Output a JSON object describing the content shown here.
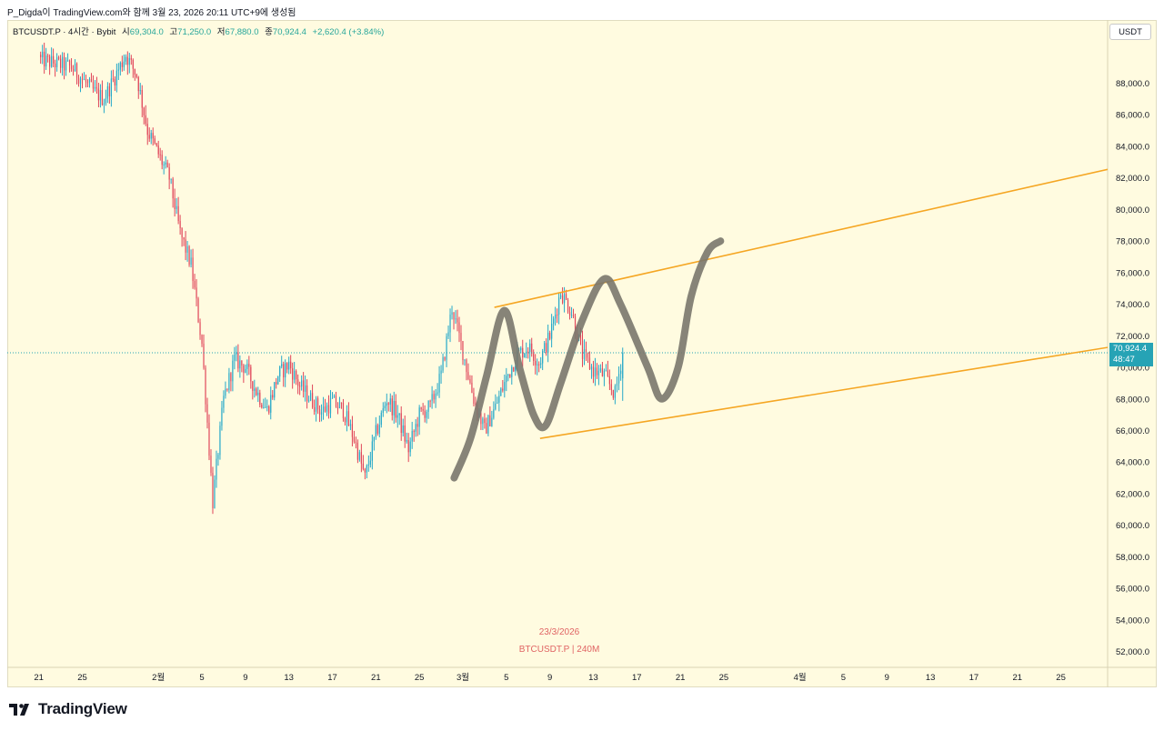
{
  "header": {
    "caption": "P_Digda이 TradingView.com와 함께 3월 23, 2026 20:11 UTC+9에 생성됨"
  },
  "legend": {
    "symbol": "BTCUSDT.P · 4시간 · Bybit",
    "open_label": "시",
    "open_value": "69,304.0",
    "high_label": "고",
    "high_value": "71,250.0",
    "low_label": "저",
    "low_value": "67,880.0",
    "close_label": "종",
    "close_value": "70,924.4",
    "change": "+2,620.4 (+3.84%)"
  },
  "price_scale": {
    "currency": "USDT",
    "last_price": "70,924.4",
    "countdown": "48:47"
  },
  "watermark": {
    "date": "23/3/2026",
    "symbol_interval": "BTCUSDT.P | 240M"
  },
  "brand": {
    "name": "TradingView"
  },
  "colors": {
    "up": "#26a9c9",
    "down": "#e0465a",
    "channel": "#f5a623",
    "drawing": "#7a776d",
    "background": "#fffbe0"
  },
  "chart_data": {
    "type": "candlestick",
    "interval": "4h",
    "ylim": [
      51000,
      92000
    ],
    "yticks": [
      52000,
      54000,
      56000,
      58000,
      60000,
      62000,
      64000,
      66000,
      68000,
      70000,
      72000,
      74000,
      76000,
      78000,
      80000,
      82000,
      84000,
      86000,
      88000
    ],
    "ytick_labels": [
      "52,000.0",
      "54,000.0",
      "56,000.0",
      "58,000.0",
      "60,000.0",
      "62,000.0",
      "64,000.0",
      "66,000.0",
      "68,000.0",
      "70,000.0",
      "72,000.0",
      "74,000.0",
      "76,000.0",
      "78,000.0",
      "80,000.0",
      "82,000.0",
      "84,000.0",
      "86,000.0",
      "88,000.0"
    ],
    "xlim_days": [
      -1,
      66
    ],
    "xticks": [
      {
        "day": 0,
        "label": "21"
      },
      {
        "day": 4,
        "label": "25"
      },
      {
        "day": 11,
        "label": "2월"
      },
      {
        "day": 15,
        "label": "5"
      },
      {
        "day": 19,
        "label": "9"
      },
      {
        "day": 23,
        "label": "13"
      },
      {
        "day": 27,
        "label": "17"
      },
      {
        "day": 31,
        "label": "21"
      },
      {
        "day": 35,
        "label": "25"
      },
      {
        "day": 39,
        "label": "3월"
      },
      {
        "day": 43,
        "label": "5"
      },
      {
        "day": 47,
        "label": "9"
      },
      {
        "day": 51,
        "label": "13"
      },
      {
        "day": 55,
        "label": "17"
      },
      {
        "day": 59,
        "label": "21"
      },
      {
        "day": 63,
        "label": "25"
      },
      {
        "day": 70,
        "label": "4월"
      },
      {
        "day": 74,
        "label": "5"
      },
      {
        "day": 78,
        "label": "9"
      },
      {
        "day": 82,
        "label": "13"
      },
      {
        "day": 86,
        "label": "17"
      },
      {
        "day": 90,
        "label": "21"
      },
      {
        "day": 94,
        "label": "25"
      }
    ],
    "xlim_axis": [
      -2.9,
      98.3
    ],
    "anchors": [
      [
        0,
        89500
      ],
      [
        3,
        89000
      ],
      [
        5,
        87500
      ],
      [
        6,
        87000
      ],
      [
        8,
        89800
      ],
      [
        9,
        88500
      ],
      [
        10,
        85000
      ],
      [
        12,
        82000
      ],
      [
        13,
        78500
      ],
      [
        14,
        76500
      ],
      [
        15,
        71500
      ],
      [
        16,
        61500
      ],
      [
        17,
        68000
      ],
      [
        18,
        70500
      ],
      [
        19,
        70000
      ],
      [
        20,
        68500
      ],
      [
        21,
        67300
      ],
      [
        22,
        69500
      ],
      [
        23,
        70200
      ],
      [
        24,
        68800
      ],
      [
        25,
        68000
      ],
      [
        26,
        67200
      ],
      [
        27,
        67800
      ],
      [
        28,
        67300
      ],
      [
        29,
        65500
      ],
      [
        30,
        63000
      ],
      [
        31,
        65800
      ],
      [
        32,
        68000
      ],
      [
        33,
        67000
      ],
      [
        34,
        64800
      ],
      [
        35,
        67000
      ],
      [
        36,
        67500
      ],
      [
        37,
        69500
      ],
      [
        38,
        73800
      ],
      [
        39,
        71000
      ],
      [
        40,
        68000
      ],
      [
        41,
        66000
      ],
      [
        42,
        67500
      ],
      [
        43,
        69300
      ],
      [
        44,
        70800
      ],
      [
        45,
        71300
      ],
      [
        46,
        70300
      ],
      [
        47,
        72000
      ],
      [
        48,
        74800
      ],
      [
        49,
        73500
      ],
      [
        50,
        70800
      ],
      [
        51,
        69800
      ],
      [
        52,
        69500
      ],
      [
        53,
        68300
      ],
      [
        53.7,
        70924
      ]
    ],
    "candles_per_day": 6,
    "last": {
      "open": 69304.0,
      "high": 71250.0,
      "low": 67880.0,
      "close": 70924.4
    },
    "channel_upper": [
      [
        41.9,
        73800
      ],
      [
        100,
        82800
      ]
    ],
    "channel_lower": [
      [
        46.1,
        65500
      ],
      [
        100,
        71450
      ]
    ],
    "drawing_path": [
      [
        38.2,
        63000
      ],
      [
        39.7,
        65500
      ],
      [
        41.2,
        69500
      ],
      [
        42.8,
        73600
      ],
      [
        44.2,
        70000
      ],
      [
        45.5,
        67000
      ],
      [
        46.6,
        66300
      ],
      [
        48.0,
        69000
      ],
      [
        50.0,
        73000
      ],
      [
        52.0,
        75600
      ],
      [
        53.5,
        74000
      ],
      [
        56.0,
        70000
      ],
      [
        57.3,
        68000
      ],
      [
        58.8,
        70000
      ],
      [
        60.0,
        74500
      ],
      [
        61.5,
        77300
      ],
      [
        62.7,
        78000
      ]
    ]
  }
}
